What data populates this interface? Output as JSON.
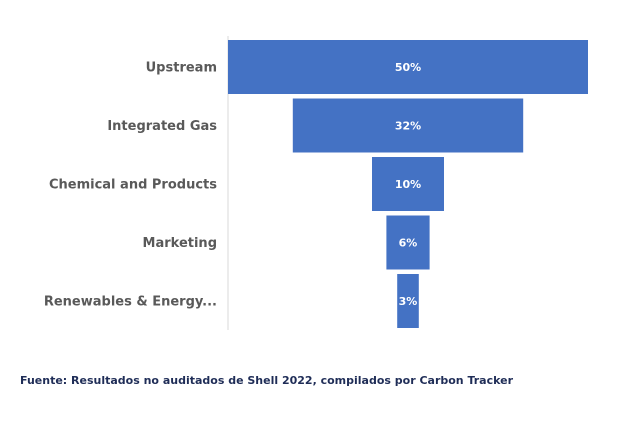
{
  "chart_data": {
    "type": "bar",
    "orientation": "horizontal-funnel",
    "categories": [
      "Upstream",
      "Integrated Gas",
      "Chemical and Products",
      "Marketing",
      "Renewables & Energy..."
    ],
    "values": [
      50,
      32,
      10,
      6,
      3
    ],
    "value_labels": [
      "50%",
      "32%",
      "10%",
      "6%",
      "3%"
    ],
    "unit": "%",
    "bar_color": "#4472c4",
    "grid": false,
    "legend": "none"
  },
  "source_note": "Fuente: Resultados no auditados de Shell 2022, compilados por Carbon Tracker"
}
